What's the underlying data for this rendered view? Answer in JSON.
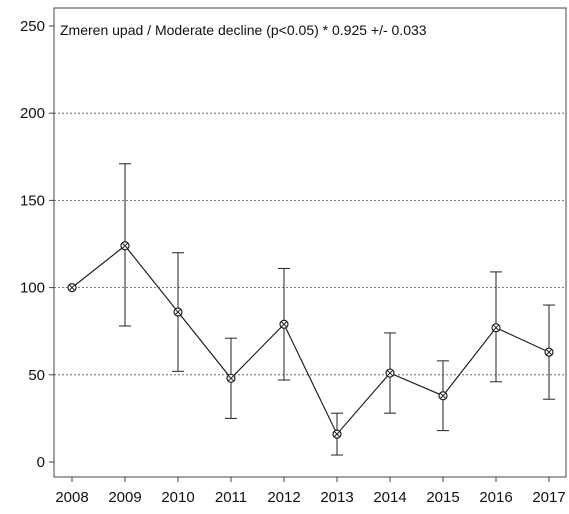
{
  "chart_data": {
    "type": "line",
    "title": "Zmeren upad / Moderate decline (p<0.05) *  0.925 +/- 0.033",
    "xlabel": "",
    "ylabel": "",
    "x": [
      "2008",
      "2009",
      "2010",
      "2011",
      "2012",
      "2013",
      "2014",
      "2015",
      "2016",
      "2017"
    ],
    "series": [
      {
        "values": [
          100,
          124,
          86,
          48,
          79,
          16,
          51,
          38,
          77,
          63
        ],
        "lower": [
          100,
          78,
          52,
          25,
          47,
          4,
          28,
          18,
          46,
          36
        ],
        "upper": [
          100,
          171,
          120,
          71,
          111,
          28,
          74,
          58,
          109,
          90
        ]
      }
    ],
    "ylim": [
      0,
      250
    ],
    "yticks": [
      0,
      50,
      100,
      150,
      200,
      250
    ],
    "grid": "horizontal dotted",
    "colors": {
      "line": "#222222",
      "grid": "#555555",
      "frame": "#444444"
    },
    "marker": "circle-x"
  }
}
